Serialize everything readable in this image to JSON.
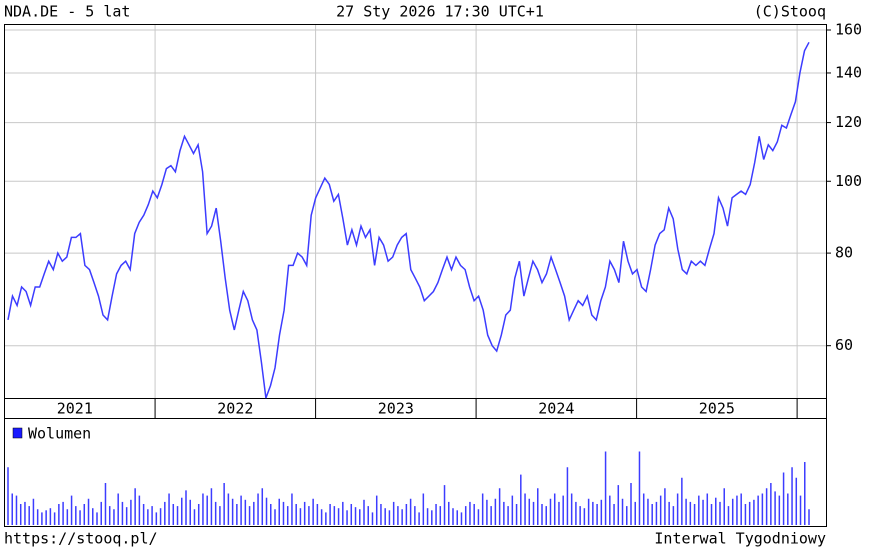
{
  "chart_data": [
    {
      "type": "line",
      "title": "NDA.DE - 5 lat",
      "date": "27 Sty 2026 17:30 UTC+1",
      "source": "(C)Stooq",
      "footer_left": "https://stooq.pl/",
      "footer_right": "Interwal Tygodniowy",
      "color": "#3c3cff",
      "log_scale": true,
      "grid": true,
      "ylim": [
        51,
        162.5
      ],
      "yticks": [
        60,
        80,
        100,
        120,
        140,
        160
      ],
      "xlim": [
        2021.065,
        2026.18
      ],
      "xticks": [
        {
          "value": 2021.5,
          "label": "2021"
        },
        {
          "value": 2022.5,
          "label": "2022"
        },
        {
          "value": 2023.5,
          "label": "2023"
        },
        {
          "value": 2024.5,
          "label": "2024"
        },
        {
          "value": 2025.5,
          "label": "2025"
        }
      ],
      "xgrid": [
        2022,
        2023,
        2024,
        2025,
        2026
      ],
      "values": [
        65,
        70,
        68,
        72,
        71,
        68,
        72,
        72,
        75,
        78,
        76,
        80,
        78,
        79,
        84,
        84,
        85,
        77,
        76,
        73,
        70,
        66,
        65,
        70,
        75,
        77,
        78,
        76,
        85,
        88,
        90,
        93,
        97,
        95,
        99,
        104,
        105,
        103,
        110,
        115,
        112,
        109,
        112,
        103,
        85,
        87,
        92,
        83,
        74,
        67,
        63,
        67,
        71,
        69,
        65,
        63,
        57,
        51,
        53,
        56,
        62,
        67,
        77,
        77,
        80,
        79,
        77,
        90,
        95,
        98,
        101,
        99,
        94,
        96,
        89,
        82,
        86,
        82,
        87,
        84,
        86,
        77,
        84,
        82,
        78,
        79,
        82,
        84,
        85,
        76,
        74,
        72,
        69,
        70,
        71,
        73,
        76,
        79,
        76,
        79,
        77,
        76,
        72,
        69,
        70,
        67,
        62,
        60,
        59,
        62,
        66,
        67,
        74,
        78,
        70,
        74,
        78,
        76,
        73,
        75,
        79,
        76,
        73,
        70,
        65,
        67,
        69,
        68,
        70,
        66,
        65,
        69,
        72,
        78,
        76,
        73,
        83,
        78,
        75,
        76,
        72,
        71,
        76,
        82,
        85,
        86,
        92,
        89,
        81,
        76,
        75,
        78,
        77,
        78,
        77,
        81,
        85,
        95,
        92,
        87,
        95,
        96,
        97,
        96,
        99,
        106,
        115,
        107,
        112,
        110,
        113,
        119,
        118,
        123,
        128,
        140,
        150,
        154
      ]
    },
    {
      "type": "bar",
      "ylim": [
        0,
        100
      ],
      "series": [
        {
          "name": "Wolumen",
          "color": "#3c3cff",
          "values": [
            55,
            30,
            28,
            20,
            22,
            18,
            25,
            15,
            12,
            14,
            16,
            12,
            20,
            22,
            15,
            28,
            18,
            14,
            20,
            25,
            16,
            12,
            22,
            40,
            18,
            15,
            30,
            22,
            17,
            24,
            35,
            28,
            20,
            15,
            18,
            12,
            16,
            22,
            30,
            20,
            18,
            26,
            33,
            24,
            15,
            20,
            30,
            28,
            35,
            22,
            18,
            40,
            30,
            25,
            20,
            28,
            24,
            18,
            22,
            30,
            35,
            26,
            20,
            15,
            25,
            22,
            18,
            30,
            20,
            16,
            22,
            18,
            25,
            20,
            15,
            12,
            20,
            18,
            16,
            22,
            14,
            20,
            17,
            15,
            24,
            18,
            12,
            28,
            20,
            16,
            14,
            22,
            18,
            15,
            20,
            25,
            18,
            12,
            30,
            16,
            14,
            20,
            18,
            38,
            22,
            16,
            14,
            12,
            18,
            22,
            20,
            15,
            30,
            24,
            18,
            25,
            35,
            22,
            18,
            28,
            20,
            48,
            30,
            25,
            22,
            35,
            20,
            18,
            25,
            30,
            22,
            28,
            55,
            30,
            22,
            18,
            16,
            25,
            22,
            20,
            24,
            70,
            28,
            20,
            38,
            25,
            18,
            40,
            22,
            70,
            30,
            25,
            20,
            22,
            28,
            35,
            22,
            18,
            30,
            45,
            25,
            22,
            20,
            28,
            24,
            30,
            20,
            26,
            22,
            35,
            18,
            25,
            28,
            30,
            20,
            22,
            24,
            28,
            30,
            35,
            40,
            32,
            28,
            50,
            30,
            55,
            45,
            28,
            60,
            15
          ]
        }
      ]
    }
  ]
}
